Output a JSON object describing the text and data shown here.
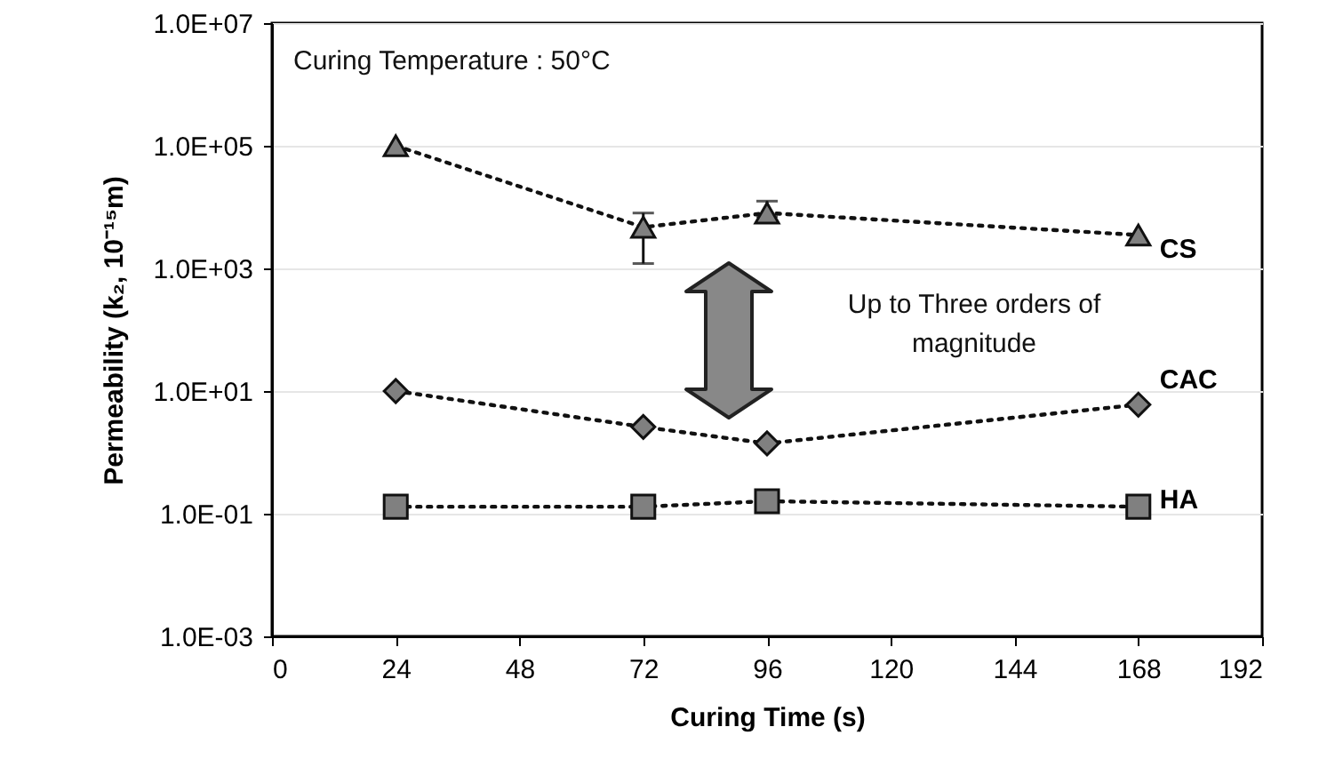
{
  "chart_data": {
    "type": "line",
    "xlabel": "Curing Time (s)",
    "ylabel": "Permeability (k₂, 10⁻¹⁵m)",
    "x": [
      24,
      72,
      96,
      168
    ],
    "series": [
      {
        "name": "CS",
        "color": "#808080",
        "marker": "triangle",
        "values": [
          100000,
          4700,
          8000,
          3500
        ],
        "errors": [
          null,
          [
            1200,
            8000
          ],
          [
            7000,
            12500
          ],
          null
        ]
      },
      {
        "name": "CAC",
        "color": "#808080",
        "marker": "diamond",
        "values": [
          10,
          2.6,
          1.4,
          6
        ]
      },
      {
        "name": "HA",
        "color": "#808080",
        "marker": "square",
        "values": [
          0.13,
          0.13,
          0.16,
          0.13
        ]
      }
    ],
    "xlim": [
      0,
      192
    ],
    "xticks": [
      0,
      24,
      48,
      72,
      96,
      120,
      144,
      168,
      192
    ],
    "ylim": [
      0.001,
      10000000
    ],
    "yticks": [
      {
        "value": 10000000,
        "label": "1.0E+07"
      },
      {
        "value": 100000,
        "label": "1.0E+05"
      },
      {
        "value": 1000,
        "label": "1.0E+03"
      },
      {
        "value": 10,
        "label": "1.0E+01"
      },
      {
        "value": 0.1,
        "label": "1.0E-01"
      },
      {
        "value": 0.001,
        "label": "1.0E-03"
      }
    ],
    "log": "y",
    "grid": "y",
    "line_style": "dotted",
    "annotations": [
      "Curing Temperature : 50°C",
      "Up to Three orders of magnitude"
    ]
  }
}
